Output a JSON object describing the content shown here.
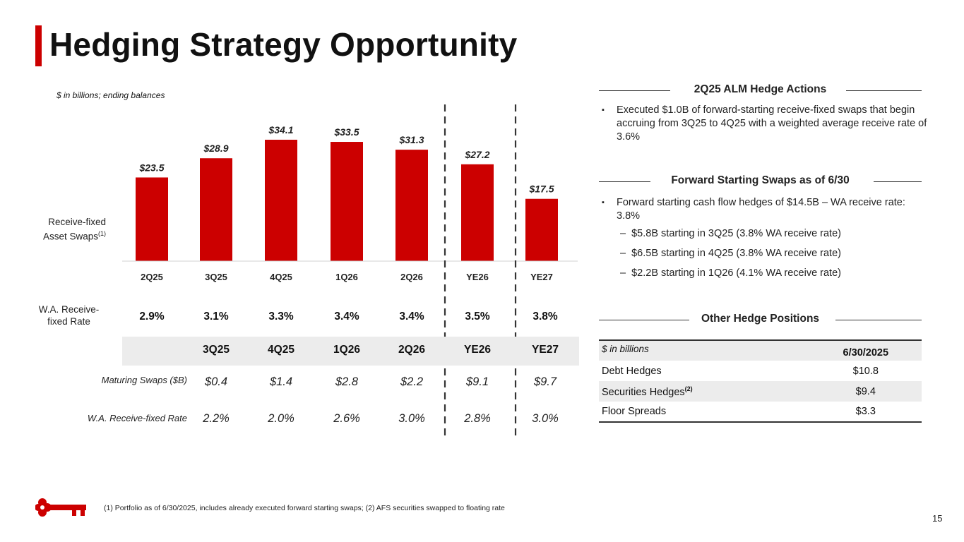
{
  "title": "Hedging Strategy Opportunity",
  "units_note": "$ in billions; ending balances",
  "brand_color": "#cc0000",
  "chart_data": {
    "type": "bar",
    "categories": [
      "2Q25",
      "3Q25",
      "4Q25",
      "1Q26",
      "2Q26",
      "YE26",
      "YE27"
    ],
    "values": [
      23.5,
      28.9,
      34.1,
      33.5,
      31.3,
      27.2,
      17.5
    ],
    "value_labels": [
      "$23.5",
      "$28.9",
      "$34.1",
      "$33.5",
      "$31.3",
      "$27.2",
      "$17.5"
    ],
    "series_label": "Receive-fixed Asset Swaps",
    "series_label_line1": "Receive-fixed",
    "series_label_line2": "Asset Swaps",
    "series_footnote_ref": "(1)",
    "ylim": [
      0,
      40
    ],
    "bar_color": "#cc0000"
  },
  "wa_receive_fixed": {
    "label_line1": "W.A. Receive-",
    "label_line2": "fixed Rate",
    "values": [
      "2.9%",
      "3.1%",
      "3.3%",
      "3.4%",
      "3.4%",
      "3.5%",
      "3.8%"
    ]
  },
  "maturing": {
    "periods": [
      "3Q25",
      "4Q25",
      "1Q26",
      "2Q26",
      "YE26",
      "YE27"
    ],
    "swaps_label": "Maturing Swaps ($B)",
    "swaps_values": [
      "$0.4",
      "$1.4",
      "$2.8",
      "$2.2",
      "$9.1",
      "$9.7"
    ],
    "rate_label": "W.A. Receive-fixed Rate",
    "rate_values": [
      "2.2%",
      "2.0%",
      "2.6%",
      "3.0%",
      "2.8%",
      "3.0%"
    ]
  },
  "alm": {
    "heading": "2Q25 ALM Hedge Actions",
    "bullet": "Executed $1.0B of forward-starting receive-fixed swaps that begin accruing from 3Q25 to 4Q25 with a weighted average receive rate of 3.6%"
  },
  "forward": {
    "heading": "Forward Starting Swaps as of 6/30",
    "bullet": "Forward starting cash flow hedges of $14.5B – WA receive rate: 3.8%",
    "subs": [
      "–  $5.8B starting in 3Q25 (3.8% WA receive rate)",
      "–  $6.5B starting in 4Q25 (3.8% WA receive rate)",
      "–  $2.2B starting in 1Q26 (4.1% WA receive rate)"
    ]
  },
  "other": {
    "heading": "Other Hedge Positions",
    "col_label": "$ in billions",
    "col_date": "6/30/2025",
    "rows": [
      {
        "label": "Debt Hedges",
        "value": "$10.8"
      },
      {
        "label": "Securities Hedges",
        "value": "$9.4",
        "ref": "(2)"
      },
      {
        "label": "Floor Spreads",
        "value": "$3.3"
      }
    ]
  },
  "footnote": "(1) Portfolio as of 6/30/2025, includes already executed forward starting swaps; (2) AFS securities swapped to floating rate",
  "page_number": "15",
  "bullet_glyph": "▪",
  "icons": {
    "logo": "key-logo-icon"
  }
}
